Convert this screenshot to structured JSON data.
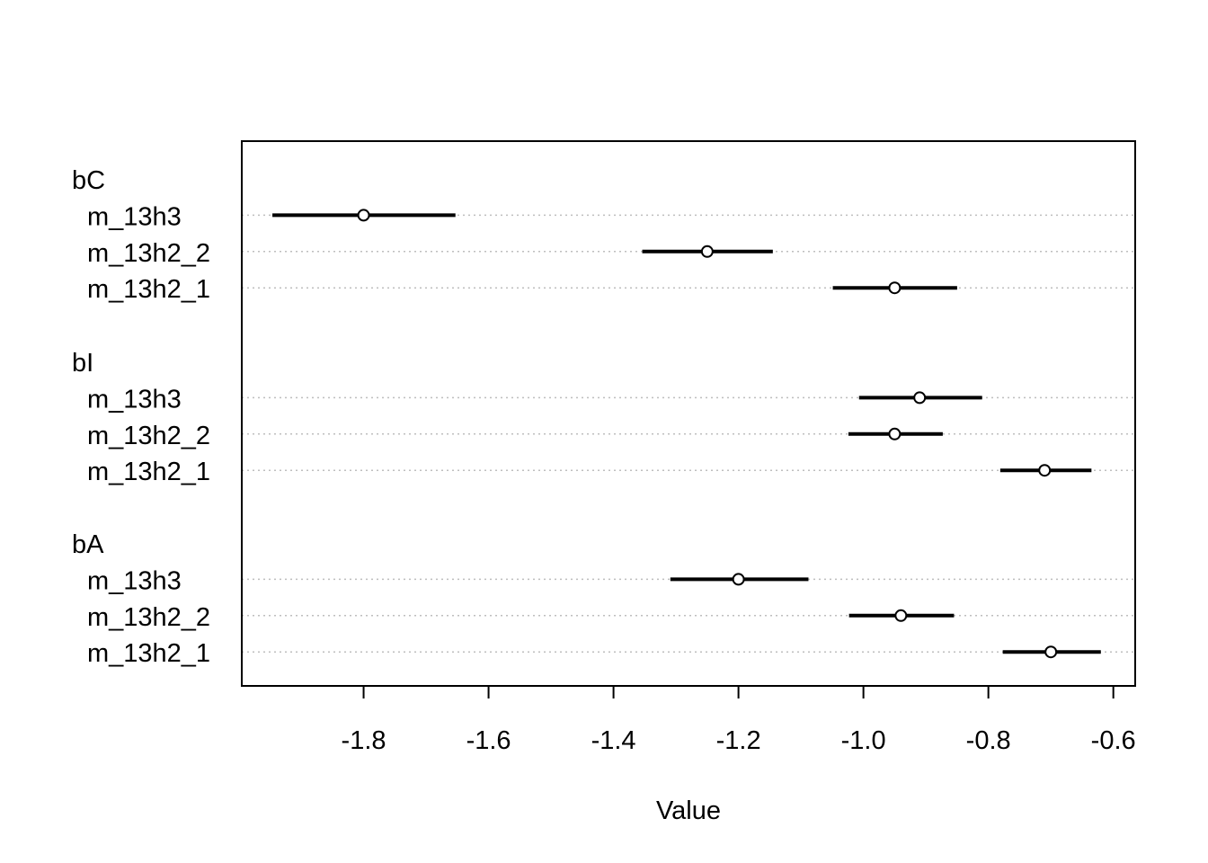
{
  "chart_data": {
    "type": "dotchart",
    "xlabel": "Value",
    "xlim": [
      -1.995,
      -0.565
    ],
    "xticks": [
      -1.8,
      -1.6,
      -1.4,
      -1.2,
      -1.0,
      -0.8,
      -0.6
    ],
    "xtick_labels": [
      "-1.8",
      "-1.6",
      "-1.4",
      "-1.2",
      "-1.0",
      "-0.8",
      "-0.6"
    ],
    "grid": "dotted horizontal lines per row",
    "interval_color": "#000000",
    "grid_color": "#bebebe",
    "groups": [
      {
        "label": "bC",
        "rows": [
          {
            "label": "m_13h3",
            "mean": -1.8,
            "lower": -1.946,
            "upper": -1.653
          },
          {
            "label": "m_13h2_2",
            "mean": -1.25,
            "lower": -1.354,
            "upper": -1.145
          },
          {
            "label": "m_13h2_1",
            "mean": -0.95,
            "lower": -1.049,
            "upper": -0.85
          }
        ]
      },
      {
        "label": "bI",
        "rows": [
          {
            "label": "m_13h3",
            "mean": -0.91,
            "lower": -1.007,
            "upper": -0.81
          },
          {
            "label": "m_13h2_2",
            "mean": -0.95,
            "lower": -1.024,
            "upper": -0.873
          },
          {
            "label": "m_13h2_1",
            "mean": -0.71,
            "lower": -0.781,
            "upper": -0.635
          }
        ]
      },
      {
        "label": "bA",
        "rows": [
          {
            "label": "m_13h3",
            "mean": -1.2,
            "lower": -1.309,
            "upper": -1.088
          },
          {
            "label": "m_13h2_2",
            "mean": -0.94,
            "lower": -1.023,
            "upper": -0.855
          },
          {
            "label": "m_13h2_1",
            "mean": -0.7,
            "lower": -0.777,
            "upper": -0.62
          }
        ]
      }
    ]
  }
}
